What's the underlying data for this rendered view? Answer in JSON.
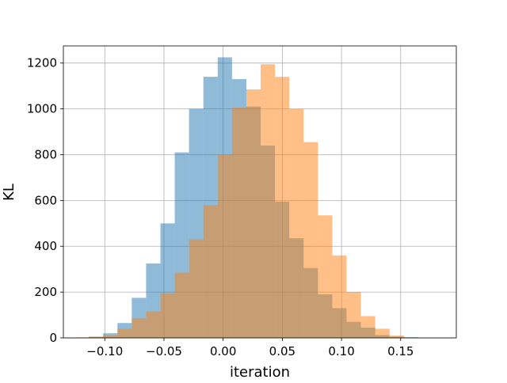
{
  "chart_data": {
    "type": "histogram",
    "xlabel": "iteration",
    "ylabel": "KL",
    "xlim": [
      -0.135,
      0.197
    ],
    "ylim": [
      0,
      1275
    ],
    "x_ticks": [
      -0.1,
      -0.05,
      0.0,
      0.05,
      0.1,
      0.15
    ],
    "x_tick_labels": [
      "−0.10",
      "−0.05",
      "0.00",
      "0.05",
      "0.10",
      "0.15"
    ],
    "y_ticks": [
      0,
      200,
      400,
      600,
      800,
      1000,
      1200
    ],
    "y_tick_labels": [
      "0",
      "200",
      "400",
      "600",
      "800",
      "1000",
      "1200"
    ],
    "grid": true,
    "bar_alpha": 0.5,
    "series": [
      {
        "color": "#1f77b4",
        "bin_edges": [
          -0.1256,
          -0.1135,
          -0.1014,
          -0.0893,
          -0.0772,
          -0.0651,
          -0.053,
          -0.0409,
          -0.0288,
          -0.0167,
          -0.0046,
          0.0075,
          0.0196,
          0.0317,
          0.0438,
          0.0559,
          0.068,
          0.0801,
          0.0922,
          0.1043,
          0.1164,
          0.1285,
          0.1406,
          0.1527,
          0.1648,
          0.1769
        ],
        "counts": [
          0,
          5,
          20,
          65,
          175,
          325,
          500,
          810,
          1000,
          1140,
          1225,
          1130,
          1010,
          840,
          595,
          435,
          305,
          190,
          130,
          70,
          45,
          12,
          5,
          3,
          0
        ]
      },
      {
        "color": "#ff7f0e",
        "bin_edges": [
          -0.1256,
          -0.1135,
          -0.1014,
          -0.0893,
          -0.0772,
          -0.0651,
          -0.053,
          -0.0409,
          -0.0288,
          -0.0167,
          -0.0046,
          0.0075,
          0.0196,
          0.0317,
          0.0438,
          0.0559,
          0.068,
          0.0801,
          0.0922,
          0.1043,
          0.1164,
          0.1285,
          0.1406,
          0.1527,
          0.1648,
          0.1769
        ],
        "counts": [
          2,
          5,
          10,
          40,
          85,
          115,
          195,
          285,
          430,
          580,
          800,
          1005,
          1085,
          1195,
          1140,
          1000,
          855,
          535,
          360,
          200,
          95,
          40,
          10,
          2,
          0
        ]
      }
    ]
  }
}
